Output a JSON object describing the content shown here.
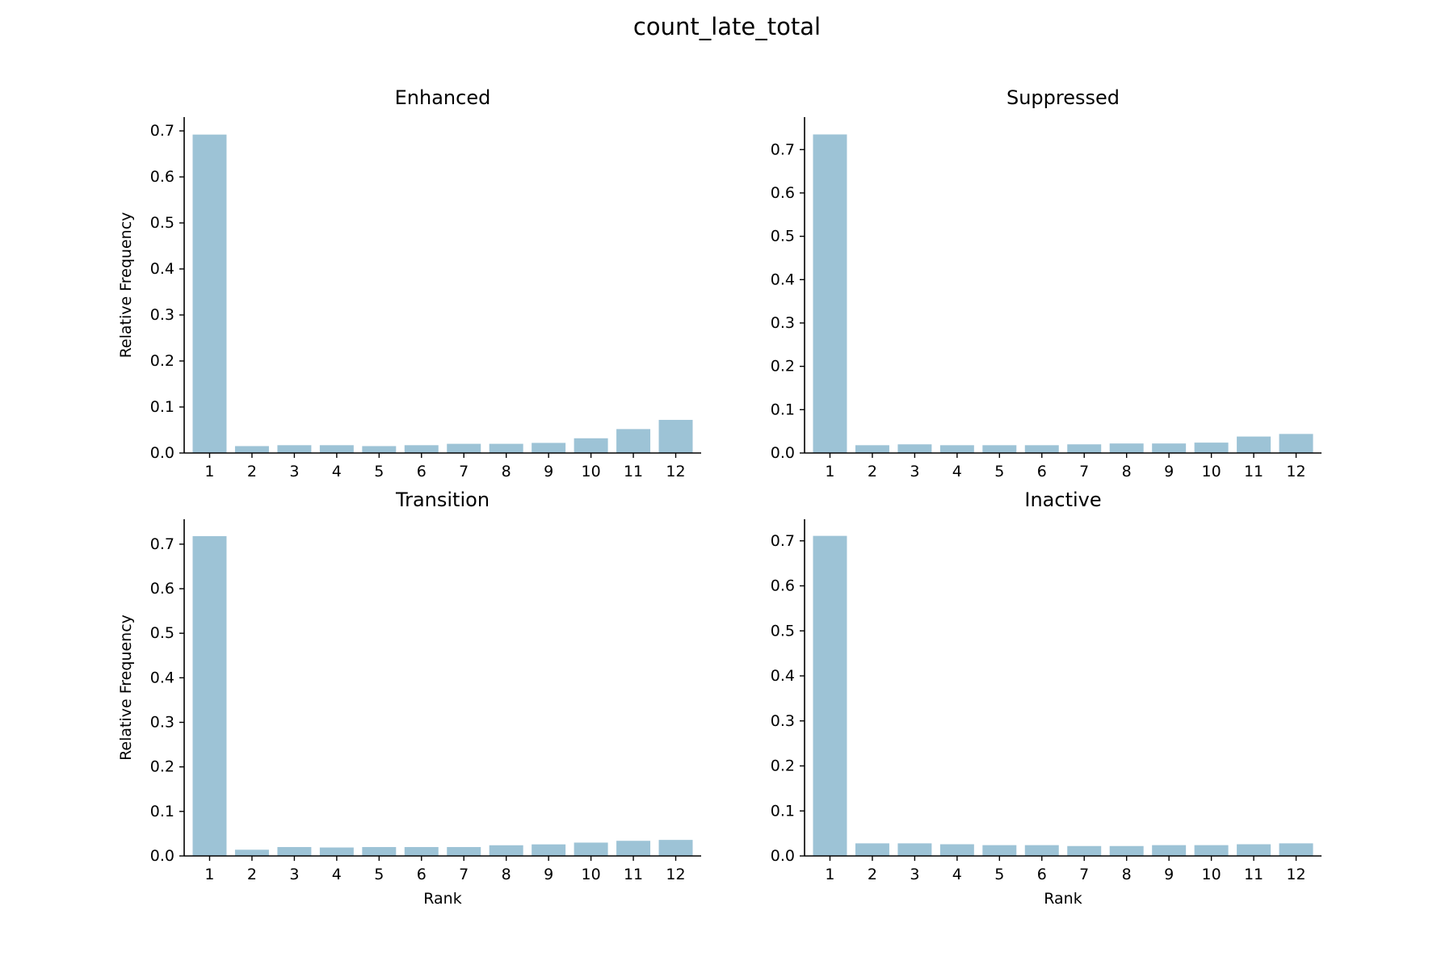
{
  "figure": {
    "title": "count_late_total"
  },
  "style": {
    "bar_color": "#9dc3d6",
    "axis_color": "#000000"
  },
  "chart_data": [
    {
      "type": "bar",
      "title": "Enhanced",
      "xlabel": "",
      "ylabel": "Relative Frequency",
      "categories": [
        "1",
        "2",
        "3",
        "4",
        "5",
        "6",
        "7",
        "8",
        "9",
        "10",
        "11",
        "12"
      ],
      "values": [
        0.692,
        0.015,
        0.017,
        0.017,
        0.015,
        0.017,
        0.02,
        0.02,
        0.022,
        0.032,
        0.052,
        0.072
      ],
      "ylim": [
        0,
        0.73
      ],
      "yticks": [
        "0.0",
        "0.1",
        "0.2",
        "0.3",
        "0.4",
        "0.5",
        "0.6",
        "0.7"
      ]
    },
    {
      "type": "bar",
      "title": "Suppressed",
      "xlabel": "",
      "ylabel": "",
      "categories": [
        "1",
        "2",
        "3",
        "4",
        "5",
        "6",
        "7",
        "8",
        "9",
        "10",
        "11",
        "12"
      ],
      "values": [
        0.735,
        0.018,
        0.02,
        0.018,
        0.018,
        0.018,
        0.02,
        0.022,
        0.022,
        0.024,
        0.038,
        0.044
      ],
      "ylim": [
        0,
        0.775
      ],
      "yticks": [
        "0.0",
        "0.1",
        "0.2",
        "0.3",
        "0.4",
        "0.5",
        "0.6",
        "0.7"
      ]
    },
    {
      "type": "bar",
      "title": "Transition",
      "xlabel": "Rank",
      "ylabel": "Relative Frequency",
      "categories": [
        "1",
        "2",
        "3",
        "4",
        "5",
        "6",
        "7",
        "8",
        "9",
        "10",
        "11",
        "12"
      ],
      "values": [
        0.718,
        0.014,
        0.02,
        0.019,
        0.02,
        0.02,
        0.02,
        0.024,
        0.026,
        0.03,
        0.034,
        0.036
      ],
      "ylim": [
        0,
        0.756
      ],
      "yticks": [
        "0.0",
        "0.1",
        "0.2",
        "0.3",
        "0.4",
        "0.5",
        "0.6",
        "0.7"
      ]
    },
    {
      "type": "bar",
      "title": "Inactive",
      "xlabel": "Rank",
      "ylabel": "",
      "categories": [
        "1",
        "2",
        "3",
        "4",
        "5",
        "6",
        "7",
        "8",
        "9",
        "10",
        "11",
        "12"
      ],
      "values": [
        0.711,
        0.028,
        0.028,
        0.026,
        0.024,
        0.024,
        0.022,
        0.022,
        0.024,
        0.024,
        0.026,
        0.028
      ],
      "ylim": [
        0,
        0.748
      ],
      "yticks": [
        "0.0",
        "0.1",
        "0.2",
        "0.3",
        "0.4",
        "0.5",
        "0.6",
        "0.7"
      ]
    }
  ]
}
